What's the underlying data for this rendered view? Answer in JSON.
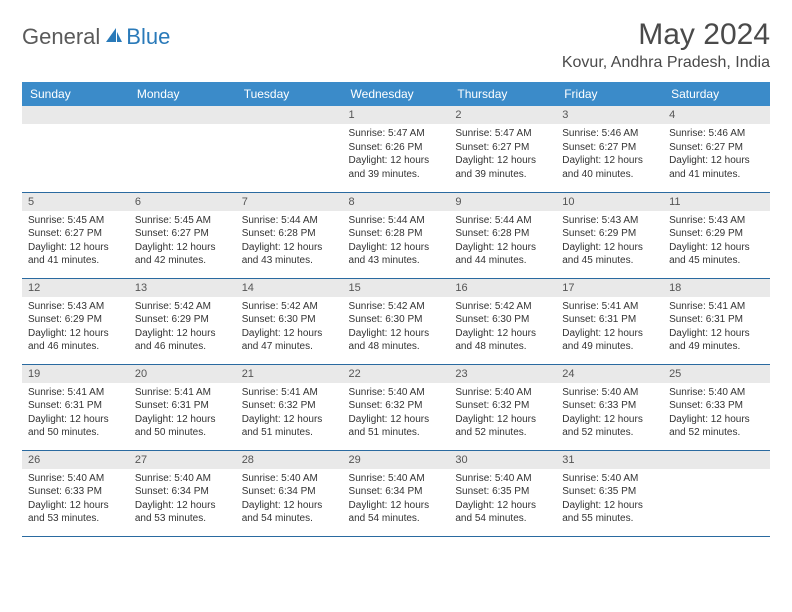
{
  "logo": {
    "part1": "General",
    "part2": "Blue"
  },
  "title": "May 2024",
  "location": "Kovur, Andhra Pradesh, India",
  "colors": {
    "header_bg": "#3b8bc9",
    "header_text": "#ffffff",
    "daynum_bg": "#e9e9e9",
    "row_border": "#2a6aa0",
    "logo_gray": "#5a5a5a",
    "logo_blue": "#2a7ab9",
    "title_color": "#4a4a4a"
  },
  "day_headers": [
    "Sunday",
    "Monday",
    "Tuesday",
    "Wednesday",
    "Thursday",
    "Friday",
    "Saturday"
  ],
  "weeks": [
    [
      {
        "blank": true
      },
      {
        "blank": true
      },
      {
        "blank": true
      },
      {
        "num": "1",
        "sunrise": "5:47 AM",
        "sunset": "6:26 PM",
        "day_h": "12",
        "day_m": "39"
      },
      {
        "num": "2",
        "sunrise": "5:47 AM",
        "sunset": "6:27 PM",
        "day_h": "12",
        "day_m": "39"
      },
      {
        "num": "3",
        "sunrise": "5:46 AM",
        "sunset": "6:27 PM",
        "day_h": "12",
        "day_m": "40"
      },
      {
        "num": "4",
        "sunrise": "5:46 AM",
        "sunset": "6:27 PM",
        "day_h": "12",
        "day_m": "41"
      }
    ],
    [
      {
        "num": "5",
        "sunrise": "5:45 AM",
        "sunset": "6:27 PM",
        "day_h": "12",
        "day_m": "41"
      },
      {
        "num": "6",
        "sunrise": "5:45 AM",
        "sunset": "6:27 PM",
        "day_h": "12",
        "day_m": "42"
      },
      {
        "num": "7",
        "sunrise": "5:44 AM",
        "sunset": "6:28 PM",
        "day_h": "12",
        "day_m": "43"
      },
      {
        "num": "8",
        "sunrise": "5:44 AM",
        "sunset": "6:28 PM",
        "day_h": "12",
        "day_m": "43"
      },
      {
        "num": "9",
        "sunrise": "5:44 AM",
        "sunset": "6:28 PM",
        "day_h": "12",
        "day_m": "44"
      },
      {
        "num": "10",
        "sunrise": "5:43 AM",
        "sunset": "6:29 PM",
        "day_h": "12",
        "day_m": "45"
      },
      {
        "num": "11",
        "sunrise": "5:43 AM",
        "sunset": "6:29 PM",
        "day_h": "12",
        "day_m": "45"
      }
    ],
    [
      {
        "num": "12",
        "sunrise": "5:43 AM",
        "sunset": "6:29 PM",
        "day_h": "12",
        "day_m": "46"
      },
      {
        "num": "13",
        "sunrise": "5:42 AM",
        "sunset": "6:29 PM",
        "day_h": "12",
        "day_m": "46"
      },
      {
        "num": "14",
        "sunrise": "5:42 AM",
        "sunset": "6:30 PM",
        "day_h": "12",
        "day_m": "47"
      },
      {
        "num": "15",
        "sunrise": "5:42 AM",
        "sunset": "6:30 PM",
        "day_h": "12",
        "day_m": "48"
      },
      {
        "num": "16",
        "sunrise": "5:42 AM",
        "sunset": "6:30 PM",
        "day_h": "12",
        "day_m": "48"
      },
      {
        "num": "17",
        "sunrise": "5:41 AM",
        "sunset": "6:31 PM",
        "day_h": "12",
        "day_m": "49"
      },
      {
        "num": "18",
        "sunrise": "5:41 AM",
        "sunset": "6:31 PM",
        "day_h": "12",
        "day_m": "49"
      }
    ],
    [
      {
        "num": "19",
        "sunrise": "5:41 AM",
        "sunset": "6:31 PM",
        "day_h": "12",
        "day_m": "50"
      },
      {
        "num": "20",
        "sunrise": "5:41 AM",
        "sunset": "6:31 PM",
        "day_h": "12",
        "day_m": "50"
      },
      {
        "num": "21",
        "sunrise": "5:41 AM",
        "sunset": "6:32 PM",
        "day_h": "12",
        "day_m": "51"
      },
      {
        "num": "22",
        "sunrise": "5:40 AM",
        "sunset": "6:32 PM",
        "day_h": "12",
        "day_m": "51"
      },
      {
        "num": "23",
        "sunrise": "5:40 AM",
        "sunset": "6:32 PM",
        "day_h": "12",
        "day_m": "52"
      },
      {
        "num": "24",
        "sunrise": "5:40 AM",
        "sunset": "6:33 PM",
        "day_h": "12",
        "day_m": "52"
      },
      {
        "num": "25",
        "sunrise": "5:40 AM",
        "sunset": "6:33 PM",
        "day_h": "12",
        "day_m": "52"
      }
    ],
    [
      {
        "num": "26",
        "sunrise": "5:40 AM",
        "sunset": "6:33 PM",
        "day_h": "12",
        "day_m": "53"
      },
      {
        "num": "27",
        "sunrise": "5:40 AM",
        "sunset": "6:34 PM",
        "day_h": "12",
        "day_m": "53"
      },
      {
        "num": "28",
        "sunrise": "5:40 AM",
        "sunset": "6:34 PM",
        "day_h": "12",
        "day_m": "54"
      },
      {
        "num": "29",
        "sunrise": "5:40 AM",
        "sunset": "6:34 PM",
        "day_h": "12",
        "day_m": "54"
      },
      {
        "num": "30",
        "sunrise": "5:40 AM",
        "sunset": "6:35 PM",
        "day_h": "12",
        "day_m": "54"
      },
      {
        "num": "31",
        "sunrise": "5:40 AM",
        "sunset": "6:35 PM",
        "day_h": "12",
        "day_m": "55"
      },
      {
        "blank": true
      }
    ]
  ],
  "labels": {
    "sunrise": "Sunrise: ",
    "sunset": "Sunset: ",
    "daylight_prefix": "Daylight: ",
    "hours_word": " hours",
    "and_word": "and ",
    "minutes_word": " minutes."
  }
}
